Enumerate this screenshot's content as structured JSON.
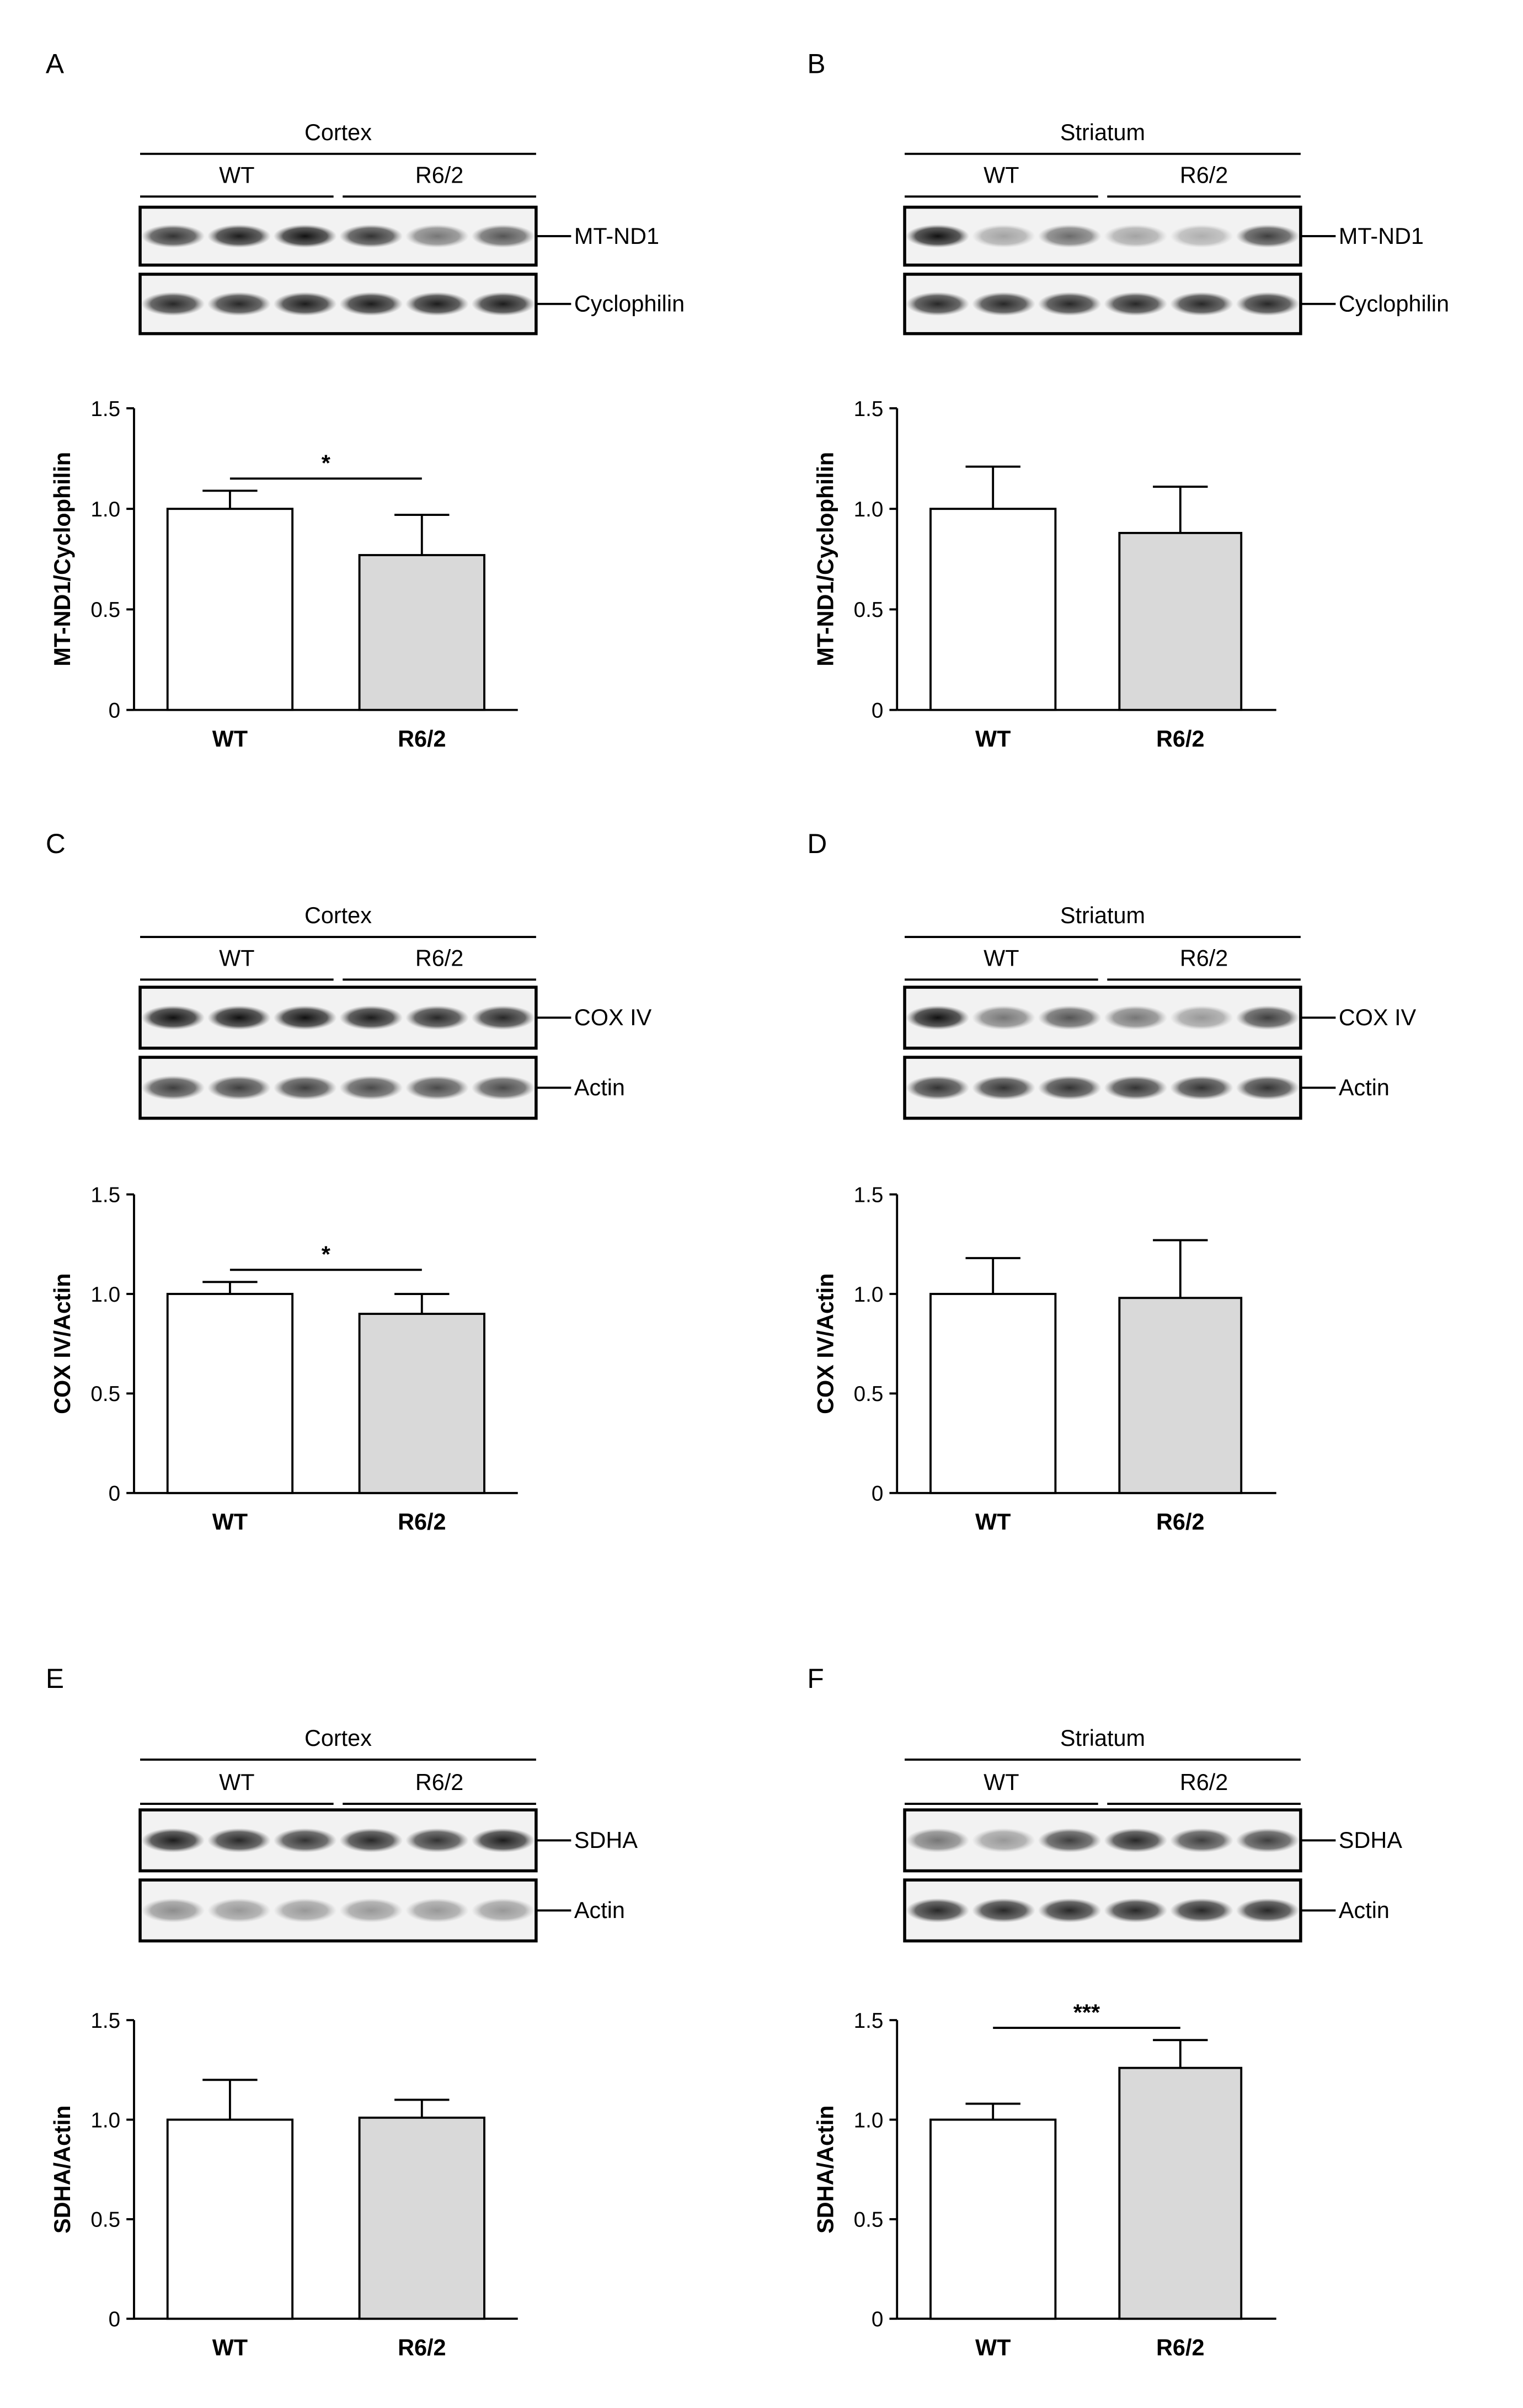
{
  "chart_data": [
    {
      "type": "bar",
      "panel_letter": "A",
      "blot_header": "Cortex",
      "blot_groups": [
        "WT",
        "R6/2"
      ],
      "blot_bands": [
        "MT-ND1",
        "Cyclophilin"
      ],
      "categories": [
        "WT",
        "R6/2"
      ],
      "values": [
        1.0,
        0.77
      ],
      "error_bars": [
        0.09,
        0.2
      ],
      "ylabel": "MT-ND1/Cyclophilin",
      "ylim": [
        0,
        1.5
      ],
      "yticks": [
        "0",
        "0.5",
        "1.0",
        "1.5"
      ],
      "significance": "*",
      "bar_colors": [
        "#ffffff",
        "#d9d9d9"
      ]
    },
    {
      "type": "bar",
      "panel_letter": "B",
      "blot_header": "Striatum",
      "blot_groups": [
        "WT",
        "R6/2"
      ],
      "blot_bands": [
        "MT-ND1",
        "Cyclophilin"
      ],
      "categories": [
        "WT",
        "R6/2"
      ],
      "values": [
        1.0,
        0.88
      ],
      "error_bars": [
        0.21,
        0.23
      ],
      "ylabel": "MT-ND1/Cyclophilin",
      "ylim": [
        0,
        1.5
      ],
      "yticks": [
        "0",
        "0.5",
        "1.0",
        "1.5"
      ],
      "significance": "",
      "bar_colors": [
        "#ffffff",
        "#d9d9d9"
      ]
    },
    {
      "type": "bar",
      "panel_letter": "C",
      "blot_header": "Cortex",
      "blot_groups": [
        "WT",
        "R6/2"
      ],
      "blot_bands": [
        "COX IV",
        "Actin"
      ],
      "categories": [
        "WT",
        "R6/2"
      ],
      "values": [
        1.0,
        0.9
      ],
      "error_bars": [
        0.06,
        0.1
      ],
      "ylabel": "COX IV/Actin",
      "ylim": [
        0,
        1.5
      ],
      "yticks": [
        "0",
        "0.5",
        "1.0",
        "1.5"
      ],
      "significance": "*",
      "bar_colors": [
        "#ffffff",
        "#d9d9d9"
      ]
    },
    {
      "type": "bar",
      "panel_letter": "D",
      "blot_header": "Striatum",
      "blot_groups": [
        "WT",
        "R6/2"
      ],
      "blot_bands": [
        "COX IV",
        "Actin"
      ],
      "categories": [
        "WT",
        "R6/2"
      ],
      "values": [
        1.0,
        0.98
      ],
      "error_bars": [
        0.18,
        0.29
      ],
      "ylabel": "COX IV/Actin",
      "ylim": [
        0,
        1.5
      ],
      "yticks": [
        "0",
        "0.5",
        "1.0",
        "1.5"
      ],
      "significance": "",
      "bar_colors": [
        "#ffffff",
        "#d9d9d9"
      ]
    },
    {
      "type": "bar",
      "panel_letter": "E",
      "blot_header": "Cortex",
      "blot_groups": [
        "WT",
        "R6/2"
      ],
      "blot_bands": [
        "SDHA",
        "Actin"
      ],
      "categories": [
        "WT",
        "R6/2"
      ],
      "values": [
        1.0,
        1.01
      ],
      "error_bars": [
        0.2,
        0.09
      ],
      "ylabel": "SDHA/Actin",
      "ylim": [
        0,
        1.5
      ],
      "yticks": [
        "0",
        "0.5",
        "1.0",
        "1.5"
      ],
      "significance": "",
      "bar_colors": [
        "#ffffff",
        "#d9d9d9"
      ]
    },
    {
      "type": "bar",
      "panel_letter": "F",
      "blot_header": "Striatum",
      "blot_groups": [
        "WT",
        "R6/2"
      ],
      "blot_bands": [
        "SDHA",
        "Actin"
      ],
      "categories": [
        "WT",
        "R6/2"
      ],
      "values": [
        1.0,
        1.26
      ],
      "error_bars": [
        0.08,
        0.14
      ],
      "ylabel": "SDHA/Actin",
      "ylim": [
        0,
        1.5
      ],
      "yticks": [
        "0",
        "0.5",
        "1.0",
        "1.5"
      ],
      "significance": "***",
      "bar_colors": [
        "#ffffff",
        "#d9d9d9"
      ]
    }
  ]
}
